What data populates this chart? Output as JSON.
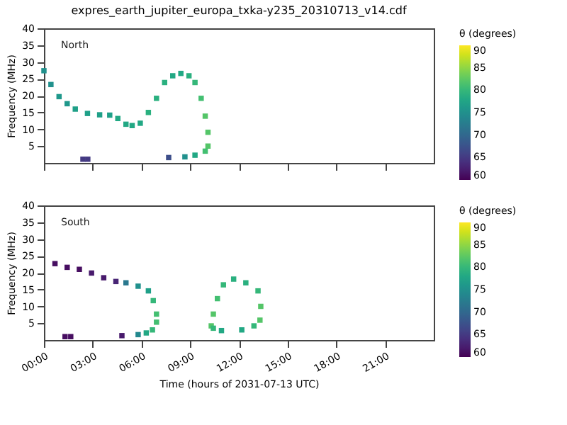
{
  "chart_data": [
    {
      "type": "scatter",
      "title": "expres_earth_jupiter_europa_txka-y235_20310713_v14.cdf",
      "ylabel": "Frequency (MHz)",
      "clabel": "θ (degrees)",
      "annotations": [
        "North"
      ],
      "marker": "square",
      "grid": false,
      "tick_labels": "y",
      "xlim": [
        0,
        24
      ],
      "xticks": [
        0,
        3,
        6,
        9,
        12,
        15,
        18,
        21
      ],
      "ylim": [
        0,
        40
      ],
      "yticks": [
        5,
        10,
        15,
        20,
        25,
        30,
        35,
        40
      ],
      "clim": [
        60,
        90
      ],
      "cticks": [
        60,
        65,
        70,
        75,
        80,
        85,
        90
      ],
      "x": [
        0,
        0.43,
        0.93,
        1.43,
        1.93,
        2.68,
        3.43,
        4.05,
        4.55,
        5.05,
        5.43,
        5.93,
        6.43,
        6.93,
        7.43,
        7.93,
        8.43,
        8.93,
        9.3,
        9.68,
        9.93,
        10.1,
        10.1,
        9.93,
        9.3,
        8.68,
        7.68,
        2.4,
        2.7
      ],
      "values": [
        27.4,
        23.3,
        19.7,
        17.6,
        16.0,
        14.7,
        14.3,
        14.2,
        13.2,
        11.5,
        11.1,
        11.8,
        15.0,
        19.2,
        23.9,
        25.9,
        26.6,
        25.9,
        23.9,
        19.2,
        13.9,
        9.1,
        5.0,
        3.5,
        2.3,
        1.8,
        1.6,
        1.1,
        1.1
      ],
      "cvalues": [
        75,
        75,
        76,
        76,
        77,
        77,
        77,
        77,
        78,
        78,
        78,
        78,
        79,
        79,
        79,
        78,
        78,
        79,
        80,
        81,
        82,
        82,
        82,
        81,
        78,
        75,
        67,
        65,
        65
      ]
    },
    {
      "type": "scatter",
      "xlabel": "Time (hours of 2031-07-13 UTC)",
      "ylabel": "Frequency (MHz)",
      "clabel": "θ (degrees)",
      "annotations": [
        "South"
      ],
      "marker": "square",
      "grid": false,
      "xlim": [
        0,
        24
      ],
      "xticks": [
        {
          "value": 0,
          "label": "00:00"
        },
        {
          "value": 3,
          "label": "03:00"
        },
        {
          "value": 6,
          "label": "06:00"
        },
        {
          "value": 9,
          "label": "09:00"
        },
        {
          "value": 12,
          "label": "12:00"
        },
        {
          "value": 15,
          "label": "15:00"
        },
        {
          "value": 18,
          "label": "18:00"
        },
        {
          "value": 21,
          "label": "21:00"
        }
      ],
      "ylim": [
        0,
        40
      ],
      "yticks": [
        5,
        10,
        15,
        20,
        25,
        30,
        35,
        40
      ],
      "clim": [
        60,
        90
      ],
      "cticks": [
        60,
        65,
        70,
        75,
        80,
        85,
        90
      ],
      "x": [
        0.68,
        1.43,
        2.18,
        2.93,
        3.68,
        4.43,
        5.05,
        5.8,
        6.43,
        6.73,
        6.93,
        6.93,
        6.68,
        6.3,
        5.8,
        4.8,
        1.3,
        1.65,
        10.3,
        10.43,
        10.68,
        11.05,
        11.68,
        12.43,
        13.18,
        13.35,
        13.3,
        12.93,
        12.18,
        10.93,
        10.43
      ],
      "values": [
        22.7,
        21.6,
        21.0,
        19.9,
        18.5,
        17.4,
        17.0,
        16.0,
        14.6,
        11.7,
        7.7,
        5.3,
        3.0,
        2.1,
        1.6,
        1.3,
        1.0,
        1.0,
        4.2,
        7.7,
        12.3,
        16.4,
        18.1,
        17.0,
        14.6,
        10.0,
        5.9,
        4.2,
        3.0,
        2.8,
        3.5
      ],
      "cvalues": [
        61,
        61,
        61,
        62,
        62,
        63,
        72,
        75,
        77,
        80,
        81,
        81,
        80,
        78,
        74,
        62,
        61,
        61,
        82,
        82,
        81,
        80,
        79,
        79,
        80,
        82,
        82,
        80,
        78,
        78,
        80
      ]
    }
  ]
}
